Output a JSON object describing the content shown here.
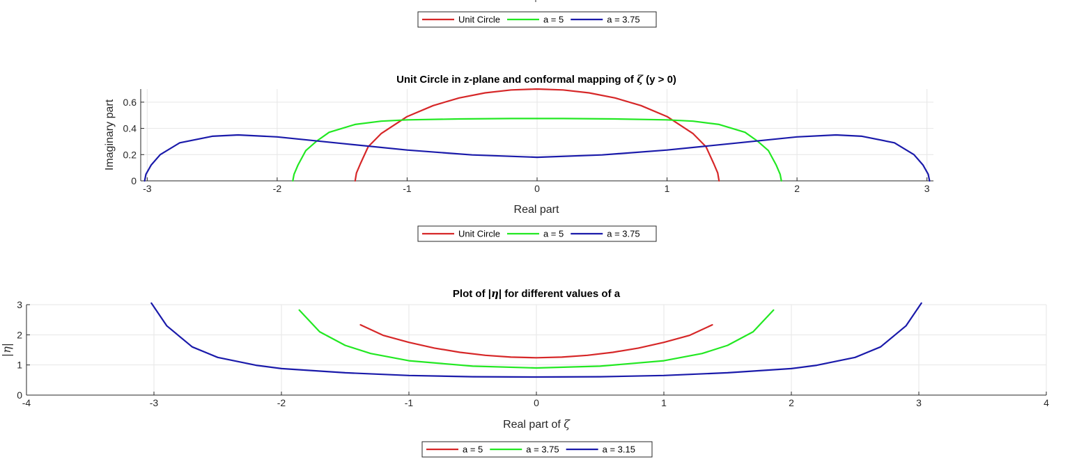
{
  "chart_data": [
    {
      "type": "line",
      "title": "",
      "xlabel": "",
      "ylabel": "",
      "legend": {
        "placement": "bottom-center",
        "entries": [
          "Unit Circle",
          "a = 5",
          "a = 3.75"
        ]
      },
      "series": [
        {
          "name": "Unit Circle",
          "color": "#d62728"
        },
        {
          "name": "a = 5",
          "color": "#22e822"
        },
        {
          "name": "a = 3.75",
          "color": "#1a1aaa"
        }
      ]
    },
    {
      "type": "line",
      "title_before": "Unit Circle in z-plane and conformal mapping of ",
      "title_symbol": "ζ",
      "title_after": " (y > 0)",
      "xlabel": "Real part",
      "ylabel": "Imaginary part",
      "xlim": [
        -3.05,
        3.05
      ],
      "ylim": [
        0,
        0.7
      ],
      "xticks": [
        -3,
        -2,
        -1,
        0,
        1,
        2,
        3
      ],
      "yticks": [
        0,
        0.2,
        0.4,
        0.6
      ],
      "grid": true,
      "legend": {
        "placement": "bottom-center",
        "entries": [
          "Unit Circle",
          "a = 5",
          "a = 3.75"
        ]
      },
      "series": [
        {
          "name": "Unit Circle",
          "color": "#d62728",
          "x": [
            -1.4,
            -1.39,
            -1.36,
            -1.3,
            -1.2,
            -1.0,
            -0.8,
            -0.6,
            -0.4,
            -0.2,
            0,
            0.2,
            0.4,
            0.6,
            0.8,
            1.0,
            1.2,
            1.3,
            1.36,
            1.39,
            1.4
          ],
          "y": [
            0,
            0.06,
            0.13,
            0.26,
            0.36,
            0.49,
            0.574,
            0.632,
            0.671,
            0.693,
            0.7,
            0.693,
            0.671,
            0.632,
            0.574,
            0.49,
            0.36,
            0.26,
            0.13,
            0.06,
            0
          ]
        },
        {
          "name": "a = 5",
          "color": "#22e822",
          "x": [
            -1.88,
            -1.87,
            -1.84,
            -1.78,
            -1.7,
            -1.6,
            -1.4,
            -1.2,
            -1.0,
            -0.6,
            -0.2,
            0,
            0.2,
            0.6,
            1.0,
            1.2,
            1.4,
            1.6,
            1.7,
            1.78,
            1.84,
            1.87,
            1.88
          ],
          "y": [
            0,
            0.05,
            0.12,
            0.23,
            0.3,
            0.37,
            0.43,
            0.455,
            0.465,
            0.472,
            0.475,
            0.475,
            0.475,
            0.472,
            0.465,
            0.455,
            0.43,
            0.37,
            0.3,
            0.23,
            0.12,
            0.05,
            0
          ]
        },
        {
          "name": "a = 3.75",
          "color": "#1a1aaa",
          "x": [
            -3.02,
            -3.01,
            -2.97,
            -2.9,
            -2.75,
            -2.5,
            -2.3,
            -2.0,
            -1.5,
            -1.0,
            -0.5,
            0,
            0.5,
            1.0,
            1.5,
            2.0,
            2.3,
            2.5,
            2.75,
            2.9,
            2.97,
            3.01,
            3.02
          ],
          "y": [
            0,
            0.05,
            0.12,
            0.2,
            0.29,
            0.34,
            0.35,
            0.335,
            0.285,
            0.235,
            0.198,
            0.18,
            0.198,
            0.235,
            0.285,
            0.335,
            0.35,
            0.34,
            0.29,
            0.2,
            0.12,
            0.05,
            0
          ]
        }
      ]
    },
    {
      "type": "line",
      "title_before": "Plot of |",
      "title_symbol": "η",
      "title_after": "| for different values of a",
      "xlabel_before": "Real part of ",
      "xlabel_symbol": "ζ",
      "ylabel_text": "|η|",
      "xlim": [
        -4,
        4
      ],
      "ylim": [
        0,
        3
      ],
      "xticks": [
        -4,
        -3,
        -2,
        -1,
        0,
        1,
        2,
        3,
        4
      ],
      "yticks": [
        0,
        1,
        2,
        3
      ],
      "grid": true,
      "legend": {
        "placement": "bottom-center",
        "entries": [
          "a = 5",
          "a = 3.75",
          "a = 3.15"
        ]
      },
      "series": [
        {
          "name": "a = 5",
          "color": "#d62728",
          "x": [
            -1.38,
            -1.2,
            -1.0,
            -0.8,
            -0.6,
            -0.4,
            -0.2,
            0,
            0.2,
            0.4,
            0.6,
            0.8,
            1.0,
            1.2,
            1.38
          ],
          "y": [
            2.33,
            1.98,
            1.75,
            1.56,
            1.42,
            1.32,
            1.26,
            1.24,
            1.26,
            1.32,
            1.42,
            1.56,
            1.75,
            1.98,
            2.33
          ]
        },
        {
          "name": "a = 3.75",
          "color": "#22e822",
          "x": [
            -1.86,
            -1.7,
            -1.5,
            -1.3,
            -1.0,
            -0.5,
            0,
            0.5,
            1.0,
            1.3,
            1.5,
            1.7,
            1.86
          ],
          "y": [
            2.82,
            2.1,
            1.65,
            1.38,
            1.14,
            0.96,
            0.9,
            0.96,
            1.14,
            1.38,
            1.65,
            2.1,
            2.82
          ]
        },
        {
          "name": "a = 3.15",
          "color": "#1a1aaa",
          "x": [
            -3.02,
            -2.9,
            -2.7,
            -2.5,
            -2.2,
            -2.0,
            -1.5,
            -1.0,
            -0.5,
            0,
            0.5,
            1.0,
            1.5,
            2.0,
            2.2,
            2.5,
            2.7,
            2.9,
            3.02
          ],
          "y": [
            3.05,
            2.3,
            1.6,
            1.25,
            0.99,
            0.88,
            0.74,
            0.65,
            0.61,
            0.6,
            0.61,
            0.65,
            0.74,
            0.88,
            0.99,
            1.25,
            1.6,
            2.3,
            3.05
          ]
        }
      ]
    }
  ]
}
